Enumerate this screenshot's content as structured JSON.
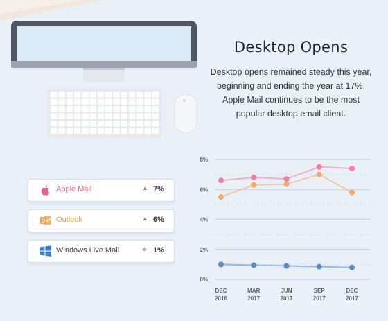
{
  "header": {
    "title": "Desktop Opens",
    "description": "Desktop opens remained steady this year, beginning and ending the year at 17%. Apple Mail continues to be the most popular desktop email client."
  },
  "clients": [
    {
      "name": "Apple Mail",
      "icon": "apple-icon",
      "trend": "up",
      "trend_symbol": "▲",
      "value": "7%",
      "color": "#e8628a"
    },
    {
      "name": "Outlook",
      "icon": "outlook-icon",
      "trend": "up",
      "trend_symbol": "▲",
      "value": "6%",
      "color": "#e9a255"
    },
    {
      "name": "Windows Live Mail",
      "icon": "windows-icon",
      "trend": "flat",
      "trend_symbol": "◆",
      "value": "1%",
      "color": "#3f7fc4"
    }
  ],
  "chart_data": {
    "type": "line",
    "categories": [
      "DEC 2016",
      "MAR 2017",
      "JUN 2017",
      "SEP 2017",
      "DEC 2017"
    ],
    "category_lines": [
      [
        "DEC",
        "2016"
      ],
      [
        "MAR",
        "2017"
      ],
      [
        "JUN",
        "2017"
      ],
      [
        "SEP",
        "2017"
      ],
      [
        "DEC",
        "2017"
      ]
    ],
    "yticks": [
      "0%",
      "2%",
      "4%",
      "6%",
      "8%"
    ],
    "ylim": [
      0,
      8
    ],
    "grid": true,
    "series": [
      {
        "values": [
          6.6,
          6.8,
          6.7,
          7.5,
          7.4
        ],
        "color": "#f07ea0"
      },
      {
        "values": [
          5.5,
          6.3,
          6.35,
          7.0,
          5.8
        ],
        "color": "#f2a96a"
      },
      {
        "values": [
          1.0,
          0.95,
          0.9,
          0.85,
          0.8
        ],
        "color": "#5b8cc6"
      }
    ]
  }
}
